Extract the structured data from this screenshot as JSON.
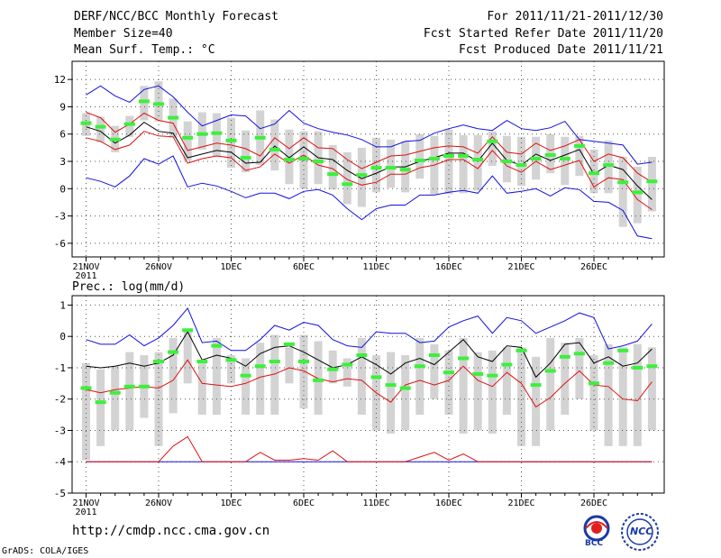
{
  "header": {
    "title": "DERF/NCC/BCC Monthly Forecast",
    "member_size": "Member Size=40",
    "variable": "Mean Surf. Temp.: °C",
    "period": "For 2011/11/21-2011/12/30",
    "started": "Fcst Started Refer Date 2011/11/20",
    "produced": "Fcst Produced Date 2011/11/21"
  },
  "footer": {
    "url": "http://cmdp.ncc.cma.gov.cn",
    "credit": "GrADS: COLA/IGES",
    "logo_bcc": "BCC",
    "logo_ncc": "NCC"
  },
  "colors": {
    "box": "#d3d3d3",
    "median": "#3cf03c",
    "mean": "#000000",
    "std": "#e01010",
    "extreme": "#1010e0",
    "grid": "#555555"
  },
  "chart_data": [
    {
      "type": "box",
      "title": "Mean Surf. Temp.: °C",
      "ylim": [
        -7.5,
        14
      ],
      "yticks": [
        -6,
        -3,
        0,
        3,
        6,
        9,
        12
      ],
      "xtick_labels": [
        "21NOV",
        "26NOV",
        "1DEC",
        "6DEC",
        "11DEC",
        "16DEC",
        "21DEC",
        "26DEC"
      ],
      "xtick_days": [
        0,
        5,
        10,
        15,
        20,
        25,
        30,
        35
      ],
      "year_label": "2011",
      "days": 40,
      "max": [
        10.3,
        11.3,
        10.2,
        9.5,
        10.9,
        11.3,
        10.1,
        8.4,
        6.9,
        7.5,
        8.1,
        8.0,
        6.6,
        7.1,
        8.6,
        7.2,
        6.6,
        6.2,
        5.9,
        5.4,
        4.6,
        4.6,
        5.2,
        5.3,
        6.1,
        6.6,
        7.0,
        6.6,
        6.4,
        7.5,
        6.6,
        6.4,
        6.7,
        7.4,
        5.4,
        5.2,
        5.0,
        4.8,
        2.7,
        2.9
      ],
      "plus_std": [
        8.4,
        7.8,
        6.2,
        7.1,
        8.3,
        7.5,
        7.2,
        4.2,
        4.6,
        5.0,
        4.8,
        4.4,
        3.6,
        5.6,
        4.4,
        5.6,
        4.5,
        4.4,
        3.2,
        2.2,
        2.9,
        3.6,
        3.7,
        4.1,
        4.5,
        4.7,
        4.6,
        3.9,
        5.7,
        4.0,
        3.8,
        5.0,
        4.2,
        4.7,
        5.4,
        3.0,
        3.8,
        3.4,
        1.7,
        0.7
      ],
      "mean": [
        6.8,
        6.3,
        5.0,
        5.9,
        7.3,
        6.3,
        6.1,
        3.4,
        3.8,
        4.2,
        4.0,
        2.8,
        2.9,
        4.7,
        3.4,
        4.6,
        3.4,
        3.2,
        2.0,
        1.1,
        1.7,
        2.4,
        2.4,
        3.0,
        3.4,
        3.9,
        3.9,
        3.0,
        5.0,
        3.1,
        2.6,
        3.8,
        3.1,
        3.7,
        4.3,
        1.6,
        2.6,
        2.1,
        0.3,
        -1.2
      ],
      "minus_std": [
        5.6,
        5.2,
        4.3,
        4.8,
        6.3,
        5.8,
        5.7,
        2.8,
        3.3,
        3.6,
        3.4,
        2.0,
        2.4,
        3.8,
        2.8,
        3.7,
        2.6,
        2.2,
        1.0,
        0.4,
        0.7,
        1.6,
        1.6,
        2.3,
        2.6,
        3.2,
        3.2,
        2.2,
        4.2,
        2.5,
        1.8,
        3.0,
        2.1,
        2.6,
        3.1,
        0.2,
        1.2,
        1.0,
        -1.2,
        -2.3
      ],
      "min": [
        1.2,
        0.8,
        0.2,
        1.4,
        3.3,
        2.7,
        3.6,
        0.2,
        0.6,
        0.3,
        -0.3,
        -1.0,
        -0.5,
        -0.5,
        -1.1,
        -0.3,
        -0.1,
        -0.7,
        -2.2,
        -3.4,
        -2.2,
        -1.8,
        -1.8,
        -0.7,
        -0.7,
        -0.4,
        -0.2,
        -0.5,
        1.4,
        -0.5,
        -0.3,
        0.0,
        -0.8,
        0.1,
        -0.1,
        -1.4,
        -1.5,
        -2.4,
        -5.2,
        -5.5
      ],
      "median": [
        7.2,
        6.8,
        5.4,
        7.1,
        9.6,
        9.3,
        7.8,
        5.6,
        6.0,
        6.1,
        5.3,
        3.4,
        5.6,
        4.3,
        3.2,
        3.3,
        3.0,
        1.6,
        0.5,
        1.5,
        2.3,
        2.3,
        2.1,
        3.1,
        3.3,
        3.6,
        3.6,
        3.2,
        5.2,
        3.0,
        2.6,
        3.3,
        3.7,
        3.3,
        4.7,
        1.7,
        2.6,
        0.7,
        -0.4,
        0.8
      ],
      "box_high": [
        8.3,
        7.9,
        6.9,
        8.0,
        11.3,
        11.8,
        9.9,
        7.4,
        8.4,
        8.3,
        7.8,
        6.4,
        8.6,
        7.6,
        6.5,
        6.3,
        6.3,
        4.8,
        4.0,
        4.5,
        5.6,
        5.4,
        5.2,
        6.0,
        5.8,
        6.5,
        5.9,
        5.9,
        6.3,
        5.8,
        5.7,
        5.7,
        6.0,
        5.7,
        5.8,
        4.3,
        5.3,
        3.5,
        2.4,
        3.5
      ],
      "box_low": [
        5.8,
        5.1,
        4.0,
        5.7,
        7.5,
        7.4,
        5.6,
        3.1,
        4.3,
        3.5,
        2.3,
        1.8,
        2.6,
        2.0,
        0.5,
        0.0,
        0.5,
        -0.1,
        -1.7,
        -2.0,
        -0.4,
        0.1,
        -0.4,
        1.1,
        -0.6,
        -0.6,
        -0.5,
        -0.2,
        2.5,
        0.7,
        0.3,
        1.0,
        1.7,
        0.4,
        1.4,
        -0.5,
        -0.5,
        -4.2,
        -3.8,
        -2.5
      ]
    },
    {
      "type": "box",
      "title": "Prec.: log(mm/d)",
      "ylim": [
        -5,
        1.3
      ],
      "yticks": [
        -5,
        -4,
        -3,
        -2,
        -1,
        0,
        1
      ],
      "xtick_labels": [
        "21NOV",
        "26NOV",
        "1DEC",
        "6DEC",
        "11DEC",
        "16DEC",
        "21DEC",
        "26DEC"
      ],
      "xtick_days": [
        0,
        5,
        10,
        15,
        20,
        25,
        30,
        35
      ],
      "year_label": "2011",
      "days": 40,
      "max": [
        -0.1,
        -0.25,
        -0.25,
        0.05,
        -0.3,
        -0.05,
        0.35,
        0.9,
        -0.2,
        -0.15,
        -0.45,
        -0.45,
        -0.1,
        0.35,
        0.2,
        0.45,
        0.35,
        -0.1,
        -0.3,
        -0.35,
        0.15,
        0.1,
        0.1,
        -0.2,
        -0.15,
        0.3,
        0.5,
        0.65,
        0.1,
        0.6,
        0.5,
        0.1,
        0.3,
        0.5,
        0.75,
        0.6,
        -0.4,
        -0.3,
        -0.15,
        0.4
      ],
      "mean": [
        -0.95,
        -1.0,
        -0.95,
        -0.85,
        -0.95,
        -0.85,
        -0.6,
        0.15,
        -0.75,
        -0.6,
        -0.7,
        -0.95,
        -0.55,
        -0.35,
        -0.3,
        -0.5,
        -0.75,
        -1.0,
        -0.9,
        -0.65,
        -0.9,
        -1.2,
        -0.85,
        -0.7,
        -0.9,
        -0.5,
        -0.1,
        -0.65,
        -0.8,
        -0.3,
        -0.35,
        -1.3,
        -0.85,
        -0.25,
        -0.2,
        -0.85,
        -0.65,
        -0.95,
        -0.85,
        -0.4
      ],
      "minus_std": [
        -1.7,
        -1.8,
        -1.7,
        -1.65,
        -1.6,
        -1.65,
        -1.4,
        -0.75,
        -1.5,
        -1.55,
        -1.6,
        -1.5,
        -1.3,
        -1.2,
        -1.0,
        -1.1,
        -1.35,
        -1.45,
        -1.35,
        -1.4,
        -1.8,
        -2.1,
        -1.55,
        -1.4,
        -1.55,
        -1.4,
        -0.95,
        -1.4,
        -1.6,
        -1.15,
        -1.5,
        -2.25,
        -1.95,
        -1.5,
        -1.1,
        -1.55,
        -1.6,
        -2.0,
        -2.05,
        -1.45
      ],
      "min": [
        -4.0,
        -4.0,
        -4.0,
        -4.0,
        -4.0,
        -4.0,
        -4.0,
        -4.0,
        -4.0,
        -4.0,
        -4.0,
        -4.0,
        -4.0,
        -4.0,
        -4.0,
        -4.0,
        -4.0,
        -4.0,
        -4.0,
        -4.0,
        -4.0,
        -4.0,
        -4.0,
        -4.0,
        -4.0,
        -4.0,
        -4.0,
        -4.0,
        -4.0,
        -4.0,
        -4.0,
        -4.0,
        -4.0,
        -4.0,
        -4.0,
        -4.0,
        -4.0,
        -4.0,
        -4.0,
        -4.0
      ],
      "low_red": [
        -4.0,
        -4.0,
        -4.0,
        -4.0,
        -4.0,
        -4.0,
        -3.5,
        -3.2,
        -4.0,
        -4.0,
        -4.0,
        -4.0,
        -3.7,
        -3.95,
        -3.95,
        -3.9,
        -3.95,
        -3.65,
        -4.0,
        -4.0,
        -4.0,
        -4.0,
        -4.0,
        -3.85,
        -3.7,
        -3.95,
        -3.75,
        -4.0,
        -4.0,
        -4.0,
        -4.0,
        -4.0,
        -4.0,
        -4.0,
        -4.0,
        -4.0,
        -4.0,
        -4.0,
        -4.0,
        -4.0
      ],
      "median": [
        -1.65,
        -2.1,
        -1.8,
        -1.6,
        -1.6,
        -0.8,
        -0.5,
        0.2,
        -0.8,
        -0.3,
        -0.75,
        -1.25,
        -0.95,
        -0.8,
        -0.25,
        -0.8,
        -1.4,
        -1.05,
        -0.9,
        -0.6,
        -1.3,
        -1.55,
        -1.65,
        -0.95,
        -0.6,
        -1.15,
        -0.7,
        -1.2,
        -1.25,
        -0.9,
        -0.45,
        -1.55,
        -1.1,
        -0.65,
        -0.55,
        -1.5,
        -0.85,
        -0.45,
        -1.0,
        -0.95
      ],
      "box_high": [
        -0.85,
        -1.05,
        -0.95,
        -0.5,
        -0.6,
        -0.5,
        -0.05,
        0.25,
        -0.75,
        -0.05,
        -0.6,
        -0.7,
        -0.2,
        0.05,
        -0.35,
        0.05,
        -0.15,
        -0.45,
        -0.7,
        -0.05,
        -0.6,
        -0.5,
        -0.6,
        -0.05,
        -0.25,
        -0.45,
        -0.05,
        -0.5,
        -0.45,
        -0.35,
        -0.35,
        -0.65,
        -0.05,
        -0.2,
        -0.05,
        -0.6,
        -0.25,
        -0.35,
        -0.25,
        -0.35
      ],
      "box_low": [
        -3.95,
        -3.5,
        -3.0,
        -3.0,
        -2.6,
        -3.5,
        -2.45,
        -1.5,
        -2.5,
        -2.5,
        -1.5,
        -2.5,
        -2.5,
        -2.5,
        -1.5,
        -2.3,
        -2.5,
        -1.5,
        -1.6,
        -2.5,
        -3.0,
        -3.1,
        -3.0,
        -2.5,
        -2.0,
        -2.5,
        -3.1,
        -3.0,
        -3.1,
        -2.5,
        -3.5,
        -3.5,
        -3.0,
        -2.5,
        -2.0,
        -3.0,
        -3.5,
        -3.5,
        -3.5,
        -3.0
      ]
    }
  ]
}
